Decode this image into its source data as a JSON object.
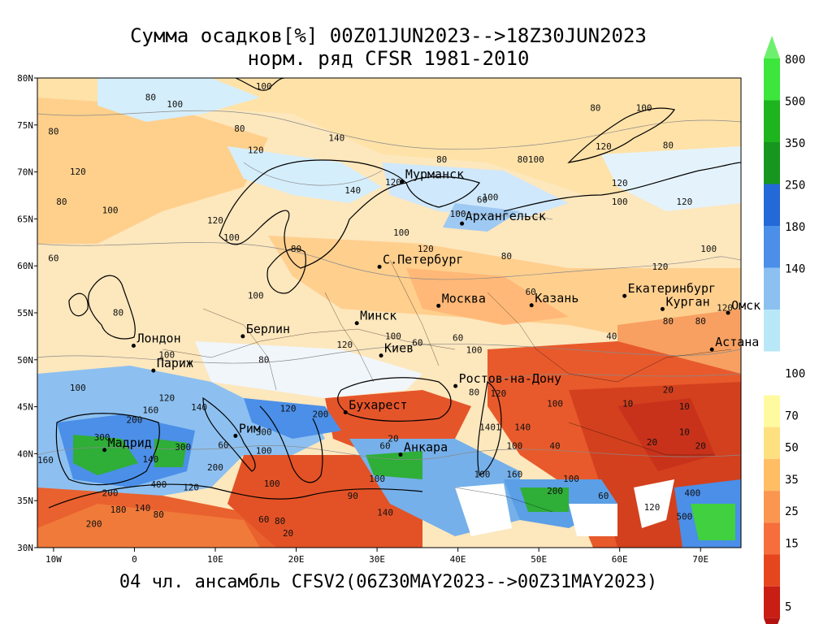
{
  "title": "Сумма осадков[%] 00Z01JUN2023-->18Z30JUN2023",
  "subtitle": "норм. ряд CFSR 1981-2010",
  "footer": "04 чл. ансамбль CFSV2(06Z30MAY2023-->00Z31MAY2023)",
  "map": {
    "lon_range": [
      -12,
      75
    ],
    "lat_range": [
      30,
      80
    ],
    "lon_ticks": [
      "10W",
      "0",
      "10E",
      "20E",
      "30E",
      "40E",
      "50E",
      "60E",
      "70E"
    ],
    "lat_ticks": [
      "80N",
      "75N",
      "70N",
      "65N",
      "60N",
      "55N",
      "50N",
      "45N",
      "40N",
      "35N",
      "30N"
    ],
    "cities": [
      {
        "name": "Мурманск",
        "lon": 33.1,
        "lat": 68.97
      },
      {
        "name": "Архангельск",
        "lon": 40.5,
        "lat": 64.5
      },
      {
        "name": "С.Петербург",
        "lon": 30.3,
        "lat": 59.9
      },
      {
        "name": "Москва",
        "lon": 37.6,
        "lat": 55.75
      },
      {
        "name": "Казань",
        "lon": 49.1,
        "lat": 55.8
      },
      {
        "name": "Екатеринбург",
        "lon": 60.6,
        "lat": 56.8
      },
      {
        "name": "Курган",
        "lon": 65.3,
        "lat": 55.4
      },
      {
        "name": "Омск",
        "lon": 73.4,
        "lat": 55.0
      },
      {
        "name": "Астана",
        "lon": 71.4,
        "lat": 51.1
      },
      {
        "name": "Минск",
        "lon": 27.5,
        "lat": 53.9
      },
      {
        "name": "Берлин",
        "lon": 13.4,
        "lat": 52.5
      },
      {
        "name": "Лондон",
        "lon": -0.1,
        "lat": 51.5
      },
      {
        "name": "Париж",
        "lon": 2.35,
        "lat": 48.85
      },
      {
        "name": "Киев",
        "lon": 30.5,
        "lat": 50.45
      },
      {
        "name": "Ростов-на-Дону",
        "lon": 39.7,
        "lat": 47.2
      },
      {
        "name": "Бухарест",
        "lon": 26.1,
        "lat": 44.4
      },
      {
        "name": "Рим",
        "lon": 12.5,
        "lat": 41.9
      },
      {
        "name": "Мадрид",
        "lon": -3.7,
        "lat": 40.4
      },
      {
        "name": "Анкара",
        "lon": 32.9,
        "lat": 39.9
      }
    ],
    "contour_labels": [
      {
        "t": "80",
        "lon": 2,
        "lat": 77.6
      },
      {
        "t": "100",
        "lon": 5,
        "lat": 76.9
      },
      {
        "t": "100",
        "lon": 16,
        "lat": 78.8
      },
      {
        "t": "80",
        "lon": 13,
        "lat": 74.3
      },
      {
        "t": "140",
        "lon": 25,
        "lat": 73.3
      },
      {
        "t": "120",
        "lon": 15,
        "lat": 72.0
      },
      {
        "t": "80",
        "lon": -10,
        "lat": 74.0
      },
      {
        "t": "120",
        "lon": -7,
        "lat": 69.7
      },
      {
        "t": "80",
        "lon": -9,
        "lat": 66.5
      },
      {
        "t": "100",
        "lon": -3,
        "lat": 65.6
      },
      {
        "t": "120",
        "lon": 10,
        "lat": 64.5
      },
      {
        "t": "100",
        "lon": 12,
        "lat": 62.7
      },
      {
        "t": "80",
        "lon": 20,
        "lat": 61.5
      },
      {
        "t": "60",
        "lon": -10,
        "lat": 60.5
      },
      {
        "t": "100",
        "lon": 15,
        "lat": 56.5
      },
      {
        "t": "140",
        "lon": 27,
        "lat": 67.7
      },
      {
        "t": "120",
        "lon": 32,
        "lat": 68.6
      },
      {
        "t": "100",
        "lon": 40,
        "lat": 65.2
      },
      {
        "t": "60",
        "lon": 43,
        "lat": 66.7
      },
      {
        "t": "100",
        "lon": 44,
        "lat": 67.0
      },
      {
        "t": "80",
        "lon": 38,
        "lat": 71.0
      },
      {
        "t": "80100",
        "lon": 49,
        "lat": 71.0
      },
      {
        "t": "120",
        "lon": 58,
        "lat": 72.4
      },
      {
        "t": "80",
        "lon": 57,
        "lat": 76.5
      },
      {
        "t": "100",
        "lon": 63,
        "lat": 76.5
      },
      {
        "t": "80",
        "lon": 66,
        "lat": 72.5
      },
      {
        "t": "100",
        "lon": 60,
        "lat": 66.5
      },
      {
        "t": "120",
        "lon": 60,
        "lat": 68.5
      },
      {
        "t": "120",
        "lon": 68,
        "lat": 66.5
      },
      {
        "t": "100",
        "lon": 71,
        "lat": 61.5
      },
      {
        "t": "120",
        "lon": 65,
        "lat": 59.6
      },
      {
        "t": "80",
        "lon": 46,
        "lat": 60.7
      },
      {
        "t": "120",
        "lon": 36,
        "lat": 61.5
      },
      {
        "t": "100",
        "lon": 33,
        "lat": 63.2
      },
      {
        "t": "60",
        "lon": 49,
        "lat": 56.9
      },
      {
        "t": "80",
        "lon": 66,
        "lat": 53.8
      },
      {
        "t": "120",
        "lon": 73,
        "lat": 55.2
      },
      {
        "t": "40",
        "lon": 59,
        "lat": 52.2
      },
      {
        "t": "80",
        "lon": 70,
        "lat": 53.8
      },
      {
        "t": "100",
        "lon": 32,
        "lat": 52.2
      },
      {
        "t": "60",
        "lon": 35,
        "lat": 51.5
      },
      {
        "t": "100",
        "lon": 42,
        "lat": 50.7
      },
      {
        "t": "120",
        "lon": 26,
        "lat": 51.3
      },
      {
        "t": "80",
        "lon": 16,
        "lat": 49.7
      },
      {
        "t": "100",
        "lon": 4,
        "lat": 50.2
      },
      {
        "t": "80",
        "lon": -2,
        "lat": 54.7
      },
      {
        "t": "100",
        "lon": -7,
        "lat": 46.7
      },
      {
        "t": "120",
        "lon": 4,
        "lat": 45.6
      },
      {
        "t": "160",
        "lon": 2,
        "lat": 44.3
      },
      {
        "t": "200",
        "lon": 0,
        "lat": 43.3
      },
      {
        "t": "140",
        "lon": 8,
        "lat": 44.6
      },
      {
        "t": "300",
        "lon": -4,
        "lat": 41.4
      },
      {
        "t": "300",
        "lon": 6,
        "lat": 40.4
      },
      {
        "t": "160",
        "lon": -11,
        "lat": 39.0
      },
      {
        "t": "140",
        "lon": 2,
        "lat": 39.1
      },
      {
        "t": "200",
        "lon": 10,
        "lat": 38.2
      },
      {
        "t": "400",
        "lon": 3,
        "lat": 36.4
      },
      {
        "t": "120",
        "lon": 7,
        "lat": 36.1
      },
      {
        "t": "200",
        "lon": -3,
        "lat": 35.5
      },
      {
        "t": "180",
        "lon": -2,
        "lat": 33.7
      },
      {
        "t": "140",
        "lon": 1,
        "lat": 33.9
      },
      {
        "t": "80",
        "lon": 3,
        "lat": 33.2
      },
      {
        "t": "200",
        "lon": -5,
        "lat": 32.2
      },
      {
        "t": "300",
        "lon": 16,
        "lat": 42.0
      },
      {
        "t": "200",
        "lon": 23,
        "lat": 43.9
      },
      {
        "t": "120",
        "lon": 19,
        "lat": 44.5
      },
      {
        "t": "100",
        "lon": 16,
        "lat": 40.0
      },
      {
        "t": "60",
        "lon": 11,
        "lat": 40.6
      },
      {
        "t": "100",
        "lon": 17,
        "lat": 36.5
      },
      {
        "t": "90",
        "lon": 27,
        "lat": 35.2
      },
      {
        "t": "100",
        "lon": 30,
        "lat": 37.0
      },
      {
        "t": "140",
        "lon": 31,
        "lat": 33.4
      },
      {
        "t": "80",
        "lon": 18,
        "lat": 32.5
      },
      {
        "t": "60",
        "lon": 16,
        "lat": 32.7
      },
      {
        "t": "20",
        "lon": 19,
        "lat": 31.2
      },
      {
        "t": "20",
        "lon": 32,
        "lat": 41.3
      },
      {
        "t": "60",
        "lon": 31,
        "lat": 40.5
      },
      {
        "t": "1401",
        "lon": 44,
        "lat": 42.5
      },
      {
        "t": "100",
        "lon": 47,
        "lat": 40.5
      },
      {
        "t": "100",
        "lon": 43,
        "lat": 37.5
      },
      {
        "t": "160",
        "lon": 47,
        "lat": 37.5
      },
      {
        "t": "100",
        "lon": 54,
        "lat": 37.0
      },
      {
        "t": "200",
        "lon": 52,
        "lat": 35.7
      },
      {
        "t": "60",
        "lon": 58,
        "lat": 35.2
      },
      {
        "t": "120",
        "lon": 64,
        "lat": 34.0
      },
      {
        "t": "500",
        "lon": 68,
        "lat": 33.0
      },
      {
        "t": "400",
        "lon": 69,
        "lat": 35.5
      },
      {
        "t": "10",
        "lon": 61,
        "lat": 45.0
      },
      {
        "t": "20",
        "lon": 66,
        "lat": 46.5
      },
      {
        "t": "10",
        "lon": 68,
        "lat": 44.7
      },
      {
        "t": "20",
        "lon": 64,
        "lat": 40.9
      },
      {
        "t": "10",
        "lon": 68,
        "lat": 42.0
      },
      {
        "t": "20",
        "lon": 70,
        "lat": 40.5
      },
      {
        "t": "120",
        "lon": 45,
        "lat": 46.1
      },
      {
        "t": "80",
        "lon": 42,
        "lat": 46.2
      },
      {
        "t": "60",
        "lon": 40,
        "lat": 52.0
      },
      {
        "t": "100",
        "lon": 52,
        "lat": 45.0
      },
      {
        "t": "40",
        "lon": 52,
        "lat": 40.5
      },
      {
        "t": "140",
        "lon": 48,
        "lat": 42.5
      }
    ]
  },
  "colorbar": {
    "upper": [
      {
        "label": "800",
        "color": "#3ce63c"
      },
      {
        "label": "500",
        "color": "#1eb41e"
      },
      {
        "label": "350",
        "color": "#16961e"
      },
      {
        "label": "250",
        "color": "#2369d7"
      },
      {
        "label": "180",
        "color": "#4b8fe8"
      },
      {
        "label": "140",
        "color": "#8cc0f0"
      },
      {
        "label": "",
        "color": "#b8e8f8"
      }
    ],
    "mid_label": "100",
    "lower": [
      {
        "label": "70",
        "color": "#fffaa0"
      },
      {
        "label": "50",
        "color": "#ffe080"
      },
      {
        "label": "35",
        "color": "#ffbe64"
      },
      {
        "label": "25",
        "color": "#fa9650"
      },
      {
        "label": "15",
        "color": "#f56e3c"
      },
      {
        "label": "",
        "color": "#e6461e"
      },
      {
        "label": "5",
        "color": "#c81e14"
      }
    ],
    "top_arrow_color": "#6ef06e",
    "bottom_arrow_color": "#b4140f"
  },
  "palette": {
    "ocean": "#ffffff",
    "orange_light": "#ffd79a",
    "orange_mid": "#ffb46e",
    "orange_deep": "#f5823c",
    "red": "#dc3c1e",
    "red_deep": "#c3280f",
    "blue_light": "#b4e1f8",
    "blue_mid": "#78b4ec",
    "blue_deep": "#3c82dc",
    "green": "#28b428"
  }
}
